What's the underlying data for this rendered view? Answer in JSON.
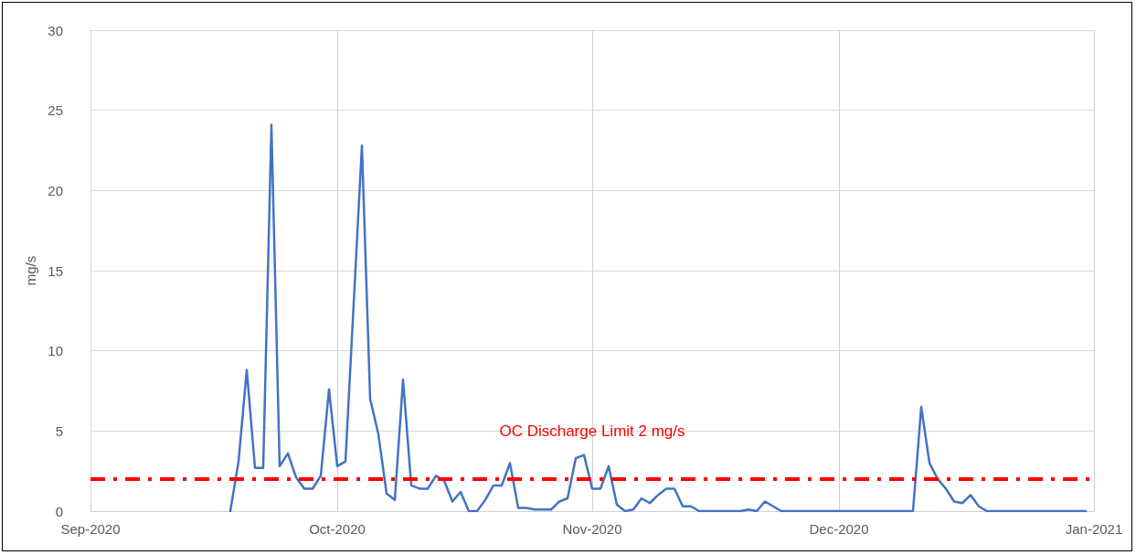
{
  "chart_data": {
    "type": "line",
    "ylabel": "mg/s",
    "x": [
      "2020-09-18",
      "2020-09-19",
      "2020-09-20",
      "2020-09-21",
      "2020-09-22",
      "2020-09-23",
      "2020-09-24",
      "2020-09-25",
      "2020-09-26",
      "2020-09-27",
      "2020-09-28",
      "2020-09-29",
      "2020-09-30",
      "2020-10-01",
      "2020-10-02",
      "2020-10-04",
      "2020-10-05",
      "2020-10-06",
      "2020-10-07",
      "2020-10-08",
      "2020-10-09",
      "2020-10-10",
      "2020-10-11",
      "2020-10-12",
      "2020-10-13",
      "2020-10-14",
      "2020-10-15",
      "2020-10-16",
      "2020-10-17",
      "2020-10-18",
      "2020-10-19",
      "2020-10-20",
      "2020-10-21",
      "2020-10-22",
      "2020-10-23",
      "2020-10-24",
      "2020-10-25",
      "2020-10-26",
      "2020-10-27",
      "2020-10-28",
      "2020-10-29",
      "2020-10-30",
      "2020-10-31",
      "2020-11-01",
      "2020-11-02",
      "2020-11-03",
      "2020-11-04",
      "2020-11-05",
      "2020-11-06",
      "2020-11-07",
      "2020-11-08",
      "2020-11-09",
      "2020-11-10",
      "2020-11-11",
      "2020-11-12",
      "2020-11-13",
      "2020-11-14",
      "2020-11-19",
      "2020-11-20",
      "2020-11-21",
      "2020-11-22",
      "2020-11-23",
      "2020-11-24",
      "2020-12-10",
      "2020-12-11",
      "2020-12-12",
      "2020-12-13",
      "2020-12-14",
      "2020-12-15",
      "2020-12-16",
      "2020-12-17",
      "2020-12-18",
      "2020-12-19",
      "2020-12-31"
    ],
    "series": [
      {
        "color": "#4472c4",
        "values": [
          0,
          3.1,
          8.8,
          2.7,
          2.7,
          24.1,
          2.8,
          3.6,
          2.1,
          1.4,
          1.4,
          2.2,
          7.6,
          2.8,
          3.1,
          22.8,
          7.0,
          4.8,
          1.1,
          0.7,
          8.2,
          1.6,
          1.4,
          1.4,
          2.2,
          1.9,
          0.6,
          1.2,
          0,
          0,
          0.7,
          1.6,
          1.6,
          3.0,
          0.2,
          0.2,
          0.1,
          0.1,
          0.1,
          0.6,
          0.8,
          3.3,
          3.5,
          1.4,
          1.4,
          2.8,
          0.4,
          0,
          0.1,
          0.8,
          0.5,
          1.0,
          1.4,
          1.4,
          0.3,
          0.3,
          0,
          0,
          0.1,
          0,
          0.6,
          0.3,
          0,
          0,
          6.5,
          3.0,
          2.0,
          1.4,
          0.6,
          0.5,
          1.0,
          0.3,
          0,
          0
        ]
      }
    ],
    "xlim": [
      "2020-09-01",
      "2021-01-01"
    ],
    "xticks": [
      {
        "value": "2020-09-01",
        "label": "Sep-2020"
      },
      {
        "value": "2020-10-01",
        "label": "Oct-2020"
      },
      {
        "value": "2020-11-01",
        "label": "Nov-2020"
      },
      {
        "value": "2020-12-01",
        "label": "Dec-2020"
      },
      {
        "value": "2021-01-01",
        "label": "Jan-2021"
      }
    ],
    "ylim": [
      0,
      30
    ],
    "yticks": [
      0,
      5,
      10,
      15,
      20,
      25,
      30
    ],
    "ref_lines": [
      {
        "axis": "y",
        "value": 2,
        "label": "OC Discharge Limit 2 mg/s",
        "color": "#ff0000",
        "line_style": "dashed"
      }
    ],
    "grid": true,
    "marker": "none",
    "line_style": "solid"
  }
}
